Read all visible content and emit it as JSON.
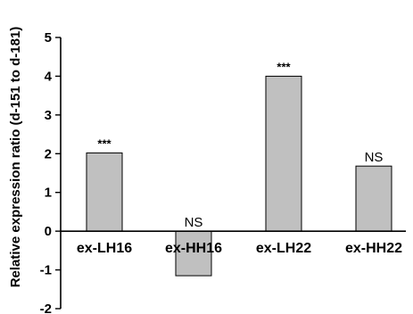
{
  "chart_data": {
    "type": "bar",
    "ylabel": "Relative expression ratio (d-151 to d-181)",
    "ylim": [
      -2,
      5
    ],
    "yticks": [
      -2,
      -1,
      0,
      1,
      2,
      3,
      4,
      5
    ],
    "categories": [
      "ex-LH16",
      "ex-HH16",
      "ex-LH22",
      "ex-HH22"
    ],
    "values": [
      2.02,
      -1.15,
      4.0,
      1.68
    ],
    "annotations": [
      "***",
      "NS",
      "***",
      "NS"
    ],
    "bar_color": "#c0c0c0",
    "grid": false
  }
}
